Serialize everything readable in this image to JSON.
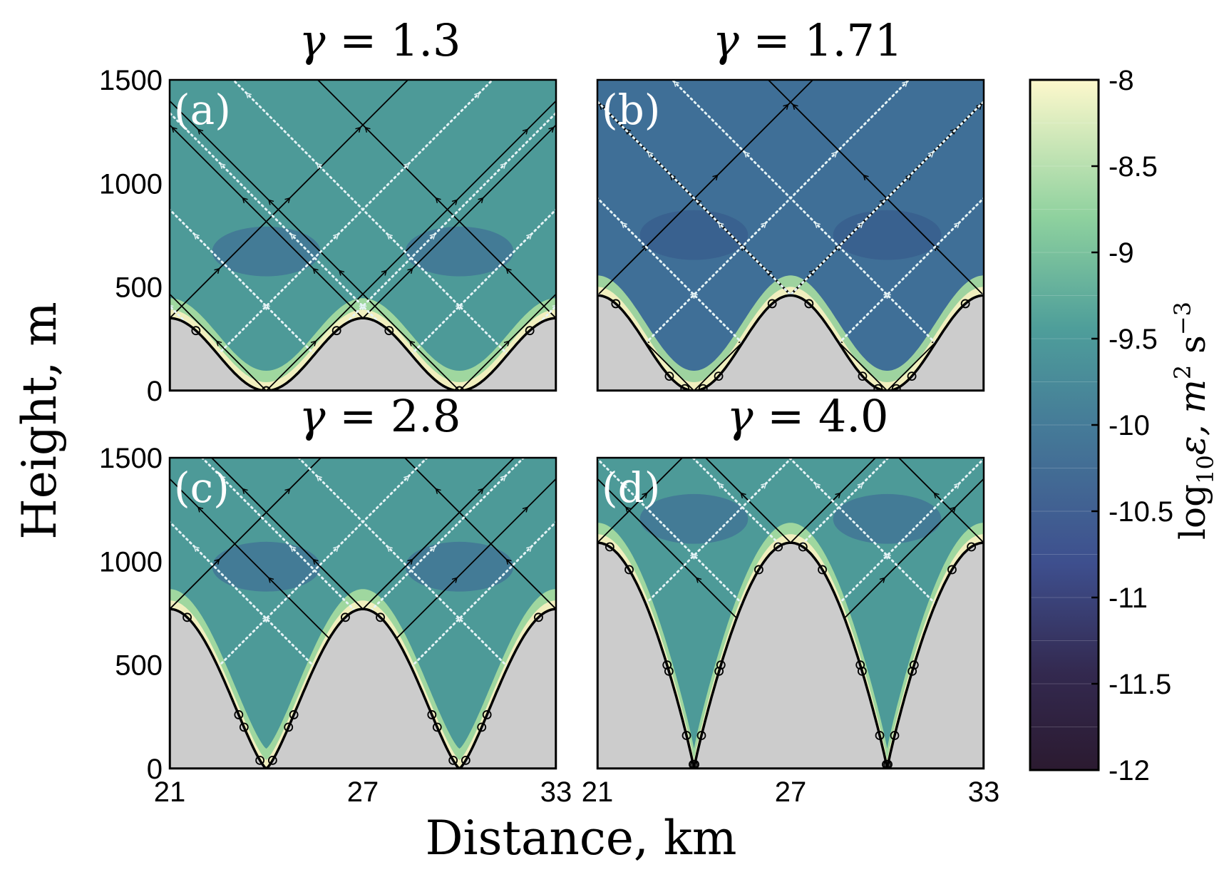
{
  "figure": {
    "ylabel": "Height, m",
    "xlabel": "Distance, km",
    "colorbar_label": "log10ε, m² s⁻³",
    "colorbar_label_parts": {
      "base": "log",
      "sub": "10",
      "sym": "ε, m",
      "sup1": "2",
      "mid": " s",
      "sup2": "−3"
    }
  },
  "chart_data": [
    {
      "type": "heatmap",
      "panel_label": "(a)",
      "title": "γ = 1.3",
      "title_parts": {
        "sym": "γ",
        "eq": " = ",
        "val": "1.3"
      },
      "gamma": 1.3,
      "hill_height_m": 350,
      "xlim": [
        21,
        33
      ],
      "ylim": [
        0,
        1500
      ],
      "xticks": [],
      "yticks": [
        "0",
        "500",
        "1000",
        "1500"
      ],
      "ray_circles_heights_m": [
        0,
        290
      ]
    },
    {
      "type": "heatmap",
      "panel_label": "(b)",
      "title": "γ = 1.71",
      "title_parts": {
        "sym": "γ",
        "eq": " = ",
        "val": "1.71"
      },
      "gamma": 1.71,
      "hill_height_m": 460,
      "xlim": [
        21,
        33
      ],
      "ylim": [
        0,
        1500
      ],
      "xticks": [],
      "yticks": [],
      "ray_circles_heights_m": [
        10,
        70,
        420
      ]
    },
    {
      "type": "heatmap",
      "panel_label": "(c)",
      "title": "γ = 2.8",
      "title_parts": {
        "sym": "γ",
        "eq": " = ",
        "val": "2.8"
      },
      "gamma": 2.8,
      "hill_height_m": 770,
      "xlim": [
        21,
        33
      ],
      "ylim": [
        0,
        1500
      ],
      "xticks": [
        "21",
        "27",
        "33"
      ],
      "yticks": [
        "0",
        "500",
        "1000",
        "1500"
      ],
      "ray_circles_heights_m": [
        40,
        200,
        260,
        730
      ]
    },
    {
      "type": "heatmap",
      "panel_label": "(d)",
      "title": "γ = 4.0",
      "title_parts": {
        "sym": "γ",
        "eq": " = ",
        "val": "4.0"
      },
      "gamma": 4.0,
      "hill_height_m": 1090,
      "xlim": [
        21,
        33
      ],
      "ylim": [
        0,
        1500
      ],
      "xticks": [
        "21",
        "27",
        "33"
      ],
      "yticks": [],
      "ray_circles_heights_m": [
        20,
        160,
        470,
        500,
        960,
        1070
      ]
    }
  ],
  "colorbar": {
    "min": -12,
    "max": -8,
    "ticks": [
      "-8",
      "-8.5",
      "-9",
      "-9.5",
      "-10",
      "-10.5",
      "-11",
      "-11.5",
      "-12"
    ],
    "tick_values": [
      -8,
      -8.5,
      -9,
      -9.5,
      -10,
      -10.5,
      -11,
      -11.5,
      -12
    ],
    "levels": 16,
    "colors": {
      "top": "#fdf8cc",
      "upper_mid": "#8ed19e",
      "mid": "#4e9e9a",
      "lower_mid": "#3e4f8e",
      "bottom": "#2b1a30"
    }
  },
  "style": {
    "terrain_fill": "#cccccc",
    "white_ray": "#e6f4f6",
    "black_ray": "#000000"
  }
}
